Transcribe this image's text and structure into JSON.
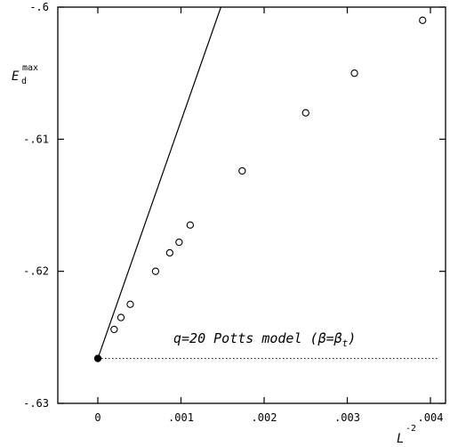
{
  "chart_data": {
    "type": "scatter",
    "title": "",
    "ylabel": {
      "base": "E",
      "sub": "d",
      "sup": "max"
    },
    "xlabel": {
      "base": "L",
      "sup": "-2"
    },
    "xlim": [
      -0.0004,
      0.0041
    ],
    "ylim": [
      -0.63,
      -0.6
    ],
    "x_ticks": [
      0,
      0.001,
      0.002,
      0.003,
      0.004
    ],
    "x_tick_labels": [
      "0",
      ".001",
      ".002",
      ".003",
      ".004"
    ],
    "y_ticks": [
      -0.63,
      -0.62,
      -0.61,
      -0.6
    ],
    "y_tick_labels": [
      "-.63",
      "-.62",
      "-.61",
      "-.6"
    ],
    "series": [
      {
        "marker": "open-circle",
        "points": [
          [
            0.000196,
            -0.6244
          ],
          [
            0.000278,
            -0.6235
          ],
          [
            0.00039,
            -0.6225
          ],
          [
            0.000694,
            -0.62
          ],
          [
            0.000865,
            -0.6186
          ],
          [
            0.000977,
            -0.6178
          ],
          [
            0.001111,
            -0.6165
          ],
          [
            0.001736,
            -0.6124
          ],
          [
            0.0025,
            -0.608
          ],
          [
            0.003086,
            -0.605
          ],
          [
            0.003906,
            -0.601
          ]
        ]
      },
      {
        "marker": "filled-circle",
        "points": [
          [
            0.0,
            -0.6266
          ]
        ]
      }
    ],
    "reference_line": {
      "style": "solid",
      "from": [
        0.0,
        -0.6266
      ],
      "to": [
        0.00148,
        -0.6
      ]
    },
    "horizontal_line": {
      "style": "dotted",
      "y": -0.6266,
      "x_from": 0.0,
      "x_to": 0.0041
    },
    "annotation": {
      "text_before": "q=20 Potts model (",
      "beta": "β",
      "equals": "=",
      "beta_t": "β",
      "sub_t": "t",
      "text_after": ")"
    },
    "grid": false,
    "legend": false
  }
}
